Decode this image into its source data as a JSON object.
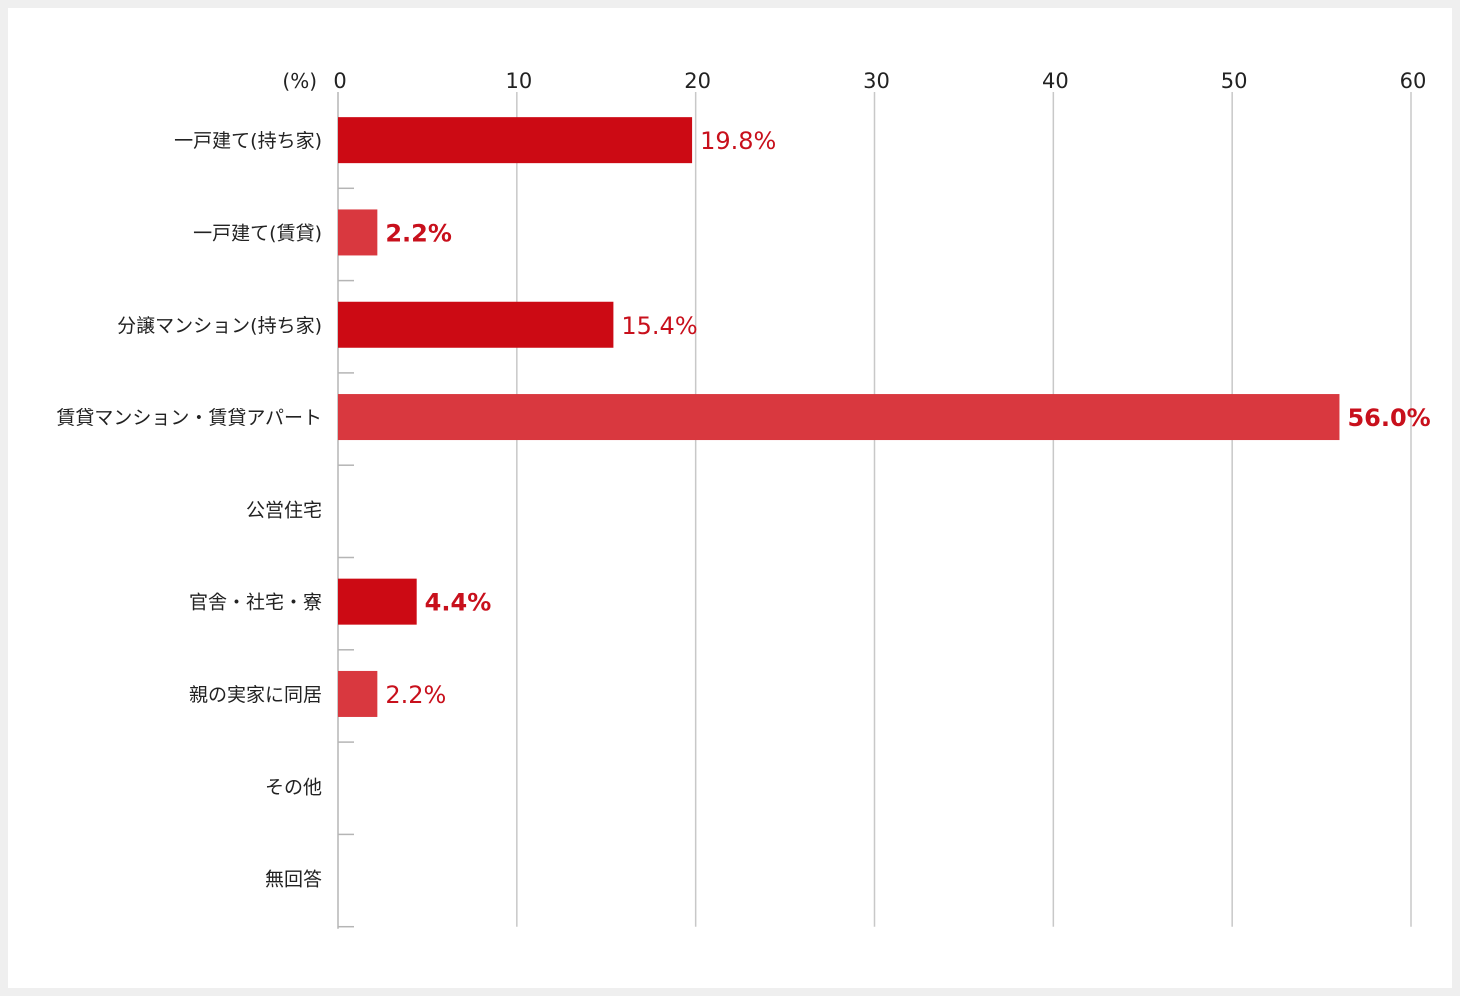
{
  "chart_data": {
    "type": "bar",
    "orientation": "horizontal",
    "unit_label": "(%)",
    "categories": [
      "一戸建て(持ち家)",
      "一戸建て(賃貸)",
      "分譲マンション(持ち家)",
      "賃貸マンション・賃貸アパート",
      "公営住宅",
      "官舎・社宅・寮",
      "親の実家に同居",
      "その他",
      "無回答"
    ],
    "values": [
      19.8,
      2.2,
      15.4,
      56.0,
      null,
      4.4,
      2.2,
      null,
      null
    ],
    "value_labels": [
      "19.8%",
      "2.2%",
      "15.4%",
      "56.0%",
      "",
      "4.4%",
      "2.2%",
      "",
      ""
    ],
    "bar_colors": [
      "#cc0a14",
      "#d9383f",
      "#cc0a14",
      "#d9383f",
      "#cc0a14",
      "#cc0a14",
      "#d9383f",
      "#cc0a14",
      "#cc0a14"
    ],
    "label_bold": [
      false,
      true,
      false,
      true,
      false,
      true,
      false,
      false,
      false
    ],
    "label_color": "#c8101c",
    "xlim": [
      0,
      60
    ],
    "xticks": [
      0,
      10,
      20,
      30,
      40,
      50,
      60
    ],
    "grid": true,
    "axis_position": "top",
    "title": "",
    "xlabel": "",
    "ylabel": ""
  }
}
